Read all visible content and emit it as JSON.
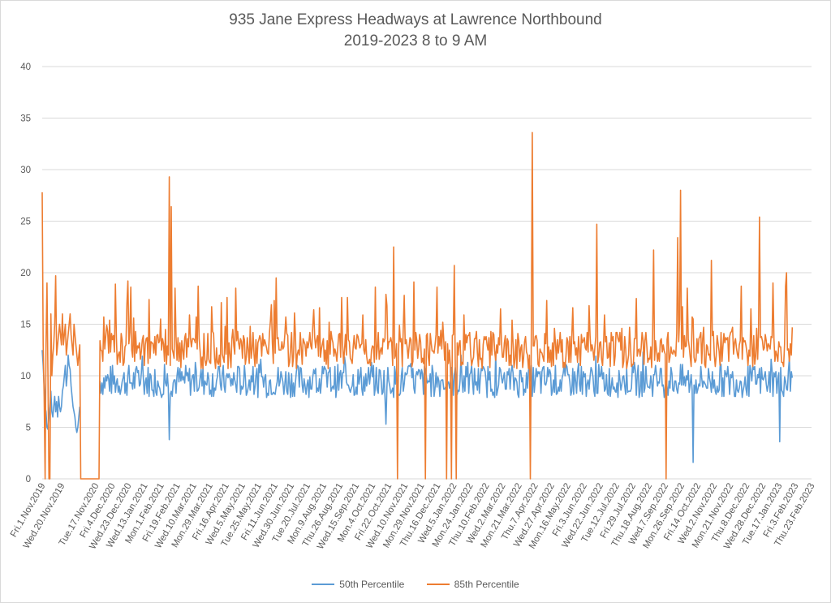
{
  "chart_data": {
    "type": "line",
    "title": "935 Jane Express Headways at Lawrence Northbound",
    "subtitle": "2019-2023 8 to 9 AM",
    "xlabel": "",
    "ylabel": "",
    "ylim": [
      0,
      40
    ],
    "yticks": [
      0,
      5,
      10,
      15,
      20,
      25,
      30,
      35,
      40
    ],
    "grid": true,
    "legend_position": "bottom",
    "x_tick_labels": [
      "Fri.1.Nov.2019",
      "Wed.20.Nov.2019",
      "Tue.17.Nov.2020",
      "Fri.4.Dec.2020",
      "Wed.23.Dec.2020",
      "Wed.13.Jan.2021",
      "Mon.1.Feb.2021",
      "Fri.19.Feb.2021",
      "Wed.10.Mar.2021",
      "Mon.29.Mar.2021",
      "Fri.16.Apr.2021",
      "Wed.5.May.2021",
      "Tue.25.May.2021",
      "Fri.11.Jun.2021",
      "Wed.30.Jun.2021",
      "Tue.20.Jul.2021",
      "Mon.9.Aug.2021",
      "Thu.26.Aug.2021",
      "Wed.15.Sep.2021",
      "Mon.4.Oct.2021",
      "Fri.22.Oct.2021",
      "Wed.10.Nov.2021",
      "Mon.29.Nov.2021",
      "Thu.16.Dec.2021",
      "Wed.5.Jan.2022",
      "Mon.24.Jan.2022",
      "Thu.10.Feb.2022",
      "Wed.2.Mar.2022",
      "Mon.21.Mar.2022",
      "Thu.7.Apr.2022",
      "Wed.27.Apr.2022",
      "Mon.16.May.2022",
      "Fri.3.Jun.2022",
      "Wed.22.Jun.2022",
      "Tue.12.Jul.2022",
      "Fri.29.Jul.2022",
      "Thu.18.Aug.2022",
      "Wed.7.Sep.2022",
      "Mon.26.Sep.2022",
      "Fri.14.Oct.2022",
      "Wed.2.Nov.2022",
      "Mon.21.Nov.2022",
      "Thu.8.Dec.2022",
      "Wed.28.Dec.2022",
      "Tue.17.Jan.2023",
      "Fri.3.Feb.2023",
      "Thu.23.Feb.2023"
    ],
    "colors": {
      "p50": "#5B9BD5",
      "p85": "#ED7D31",
      "grid": "#d9d9d9",
      "text": "#595959"
    },
    "n_points": 800,
    "series": [
      {
        "name": "50th Percentile",
        "color": "#5B9BD5",
        "baseline": 9.5,
        "segments": [
          {
            "from": 0,
            "to": 40,
            "values": [
              12.5,
              11,
              9,
              7,
              6.5,
              5,
              4.8,
              6,
              7,
              8.5,
              6.5,
              6,
              7,
              8,
              6.5,
              7.5,
              6,
              8,
              7,
              6.5,
              7,
              8.5,
              9,
              10,
              11,
              9,
              10,
              12,
              11,
              10.6,
              9,
              8,
              7,
              6.5,
              6,
              5,
              4.5,
              5,
              6,
              7
            ]
          },
          {
            "from": 60,
            "to": 780,
            "values": "noise"
          }
        ],
        "gaps": [
          [
            40,
            59
          ]
        ],
        "notable_points": {
          "132": 3.8,
          "357": 5.3,
          "676": 1.6,
          "766": 3.6
        }
      },
      {
        "name": "85th Percentile",
        "color": "#ED7D31",
        "baseline": 12.5,
        "segments": [
          {
            "from": 0,
            "to": 40,
            "values": [
              27.8,
              13,
              8,
              0,
              13,
              19,
              10,
              0,
              0,
              16,
              10,
              12,
              13,
              15,
              19.7,
              12,
              13,
              14,
              15,
              14,
              13,
              16,
              13,
              14,
              15,
              12,
              13,
              14,
              15,
              16,
              14,
              13,
              12,
              15,
              14,
              13,
              12,
              11,
              12,
              13
            ]
          },
          {
            "from": 40,
            "to": 60,
            "values": 0
          },
          {
            "from": 60,
            "to": 780,
            "values": "noise"
          }
        ],
        "notable_points": {
          "132": 29.3,
          "134": 26.4,
          "162": 18.7,
          "201": 18.5,
          "365": 22.5,
          "369": 0,
          "386": 19.1,
          "398": 0,
          "414": 14.4,
          "420": 0,
          "425": 0,
          "428": 20.7,
          "430": 0,
          "507": 0,
          "509": 33.6,
          "576": 24.7,
          "635": 22.2,
          "648": 0,
          "660": 23.4,
          "663": 28.0,
          "695": 21.2,
          "745": 25.4,
          "773": 20.0,
          "787": 19.2
        }
      }
    ]
  },
  "legend": {
    "p50_label": "50th Percentile",
    "p85_label": "85th Percentile"
  }
}
